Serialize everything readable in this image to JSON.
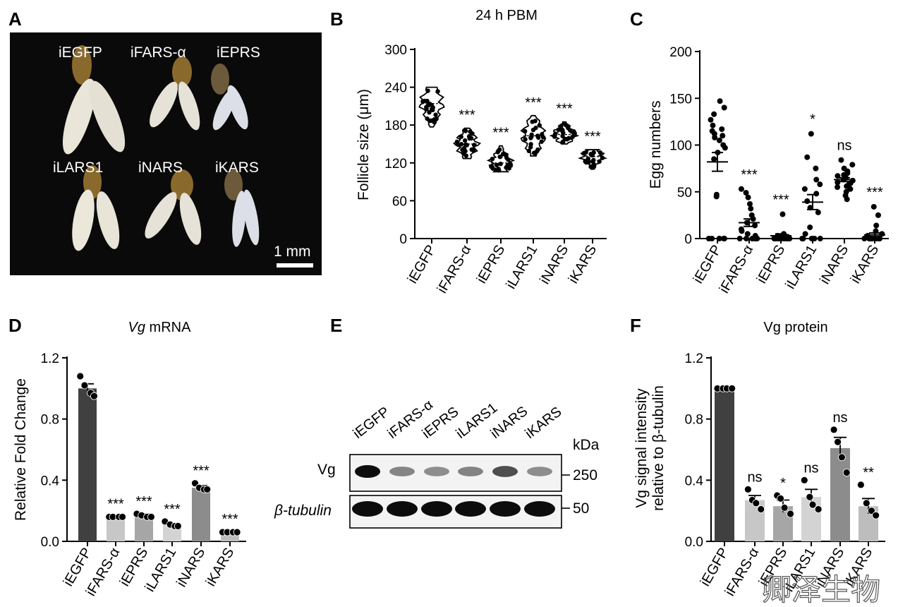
{
  "panel_labels": [
    "A",
    "B",
    "C",
    "D",
    "E",
    "F"
  ],
  "panel_a": {
    "top_labels": [
      "iEGFP",
      "iFARS-α",
      "iEPRS"
    ],
    "bottom_labels": [
      "iLARS1",
      "iNARS",
      "iKARS"
    ],
    "scale_bar": "1 mm",
    "colors": {
      "background": "#0a0a0a",
      "ovary": "#e9e5d9",
      "head": "#8a6a2c"
    }
  },
  "panel_b": {
    "title": "24 h PBM",
    "ylabel": "Follicle size (μm)",
    "ticks": [
      "0",
      "60",
      "120",
      "180",
      "240",
      "300"
    ]
  },
  "panel_c": {
    "title": "",
    "ylabel": "Egg numbers",
    "ticks": [
      "0",
      "50",
      "100",
      "150",
      "200"
    ]
  },
  "panel_d": {
    "title_italic": "Vg",
    "title_rest": " mRNA",
    "ylabel": "Relative Fold Change",
    "ticks": [
      "0.0",
      "0.4",
      "0.8",
      "1.2"
    ]
  },
  "panel_e": {
    "lanes": [
      "iEGFP",
      "iFARS-α",
      "iEPRS",
      "iLARS1",
      "iNARS",
      "iKARS"
    ],
    "unit": "kDa",
    "row_labels": [
      "Vg",
      "β-tubulin"
    ],
    "markers": [
      "250",
      "50"
    ],
    "vg_band_intensity": [
      1.0,
      0.28,
      0.24,
      0.3,
      0.62,
      0.24
    ]
  },
  "panel_f": {
    "title": "Vg protein",
    "ylabel_line1": "Vg signal intensity",
    "ylabel_line2": "relative to β-tubulin",
    "ticks": [
      "0.0",
      "0.4",
      "0.8",
      "1.2"
    ]
  },
  "watermark": "卿泽生物",
  "chart_data": [
    {
      "panel": "B",
      "type": "scatter",
      "title": "24 h PBM",
      "ylabel": "Follicle size (μm)",
      "ylim": [
        0,
        300
      ],
      "categories": [
        "iEGFP",
        "iFARS-α",
        "iEPRS",
        "iLARS1",
        "iNARS",
        "iKARS"
      ],
      "median": [
        214,
        150,
        120,
        163,
        165,
        130
      ],
      "range_min": [
        177,
        127,
        106,
        131,
        150,
        110
      ],
      "range_max": [
        240,
        175,
        147,
        195,
        185,
        141
      ],
      "significance": [
        "",
        "***",
        "***",
        "***",
        "***",
        "***"
      ]
    },
    {
      "panel": "C",
      "type": "scatter",
      "ylabel": "Egg numbers",
      "ylim": [
        0,
        200
      ],
      "categories": [
        "iEGFP",
        "iFARS-α",
        "iEPRS",
        "iLARS1",
        "iNARS",
        "iKARS"
      ],
      "mean": [
        82,
        17,
        3,
        39,
        63,
        4
      ],
      "sem": [
        10,
        4,
        2,
        8,
        2,
        2
      ],
      "points": [
        [
          147,
          140,
          133,
          127,
          121,
          117,
          115,
          112,
          110,
          108,
          105,
          100,
          97,
          92,
          85,
          47,
          45,
          0,
          0,
          0,
          0,
          0
        ],
        [
          53,
          49,
          44,
          37,
          32,
          25,
          21,
          17,
          14,
          10,
          8,
          5,
          3,
          0,
          0,
          0,
          0,
          0,
          0,
          0
        ],
        [
          26,
          5,
          3,
          2,
          0,
          0,
          0,
          0,
          0,
          0,
          0,
          0,
          0,
          0,
          0,
          0
        ],
        [
          112,
          87,
          75,
          63,
          58,
          53,
          48,
          40,
          33,
          28,
          12,
          5,
          0,
          0,
          0,
          0,
          0
        ],
        [
          84,
          79,
          75,
          72,
          70,
          68,
          67,
          65,
          63,
          62,
          60,
          59,
          58,
          56,
          55,
          53,
          50,
          46,
          42
        ],
        [
          34,
          25,
          14,
          8,
          5,
          3,
          0,
          0,
          0,
          0,
          0,
          0,
          0,
          0,
          0
        ]
      ],
      "significance": [
        "",
        "***",
        "***",
        "*",
        "ns",
        "***"
      ]
    },
    {
      "panel": "D",
      "type": "bar",
      "title": "Vg mRNA",
      "ylabel": "Relative Fold Change",
      "ylim": [
        0,
        1.2
      ],
      "categories": [
        "iEGFP",
        "iFARS-α",
        "iEPRS",
        "iLARS1",
        "iNARS",
        "iKARS"
      ],
      "values": [
        1.0,
        0.16,
        0.17,
        0.11,
        0.35,
        0.06
      ],
      "sem": [
        0.03,
        0.005,
        0.01,
        0.01,
        0.015,
        0.005
      ],
      "points": [
        [
          1.08,
          1.02,
          0.97,
          0.95
        ],
        [
          0.16,
          0.16,
          0.16,
          0.16
        ],
        [
          0.18,
          0.17,
          0.16,
          0.16
        ],
        [
          0.13,
          0.11,
          0.1,
          0.1
        ],
        [
          0.38,
          0.35,
          0.34,
          0.34
        ],
        [
          0.06,
          0.06,
          0.06,
          0.06
        ]
      ],
      "colors": [
        "#404040",
        "#c7c7c7",
        "#a6a6a6",
        "#d3d3d3",
        "#8c8c8c",
        "#bdbdbd"
      ],
      "significance": [
        "",
        "***",
        "***",
        "***",
        "***",
        "***"
      ]
    },
    {
      "panel": "F",
      "type": "bar",
      "title": "Vg protein",
      "ylabel": "Vg signal intensity relative to β-tubulin",
      "ylim": [
        0,
        1.2
      ],
      "categories": [
        "iEGFP",
        "iFARS-α",
        "iEPRS",
        "iLARS1",
        "iNARS",
        "iKARS"
      ],
      "values": [
        1.0,
        0.27,
        0.23,
        0.29,
        0.61,
        0.23
      ],
      "sem": [
        0.0,
        0.03,
        0.04,
        0.05,
        0.07,
        0.05
      ],
      "points": [
        [
          1.0,
          1.0,
          1.0,
          1.0
        ],
        [
          0.34,
          0.27,
          0.25,
          0.21
        ],
        [
          0.3,
          0.28,
          0.22,
          0.18
        ],
        [
          0.4,
          0.29,
          0.24,
          0.21
        ],
        [
          0.73,
          0.65,
          0.55,
          0.45
        ],
        [
          0.37,
          0.25,
          0.2,
          0.17
        ]
      ],
      "colors": [
        "#404040",
        "#c7c7c7",
        "#a6a6a6",
        "#d3d3d3",
        "#8c8c8c",
        "#bdbdbd"
      ],
      "significance": [
        "",
        "ns",
        "*",
        "ns",
        "ns",
        "**"
      ]
    }
  ]
}
